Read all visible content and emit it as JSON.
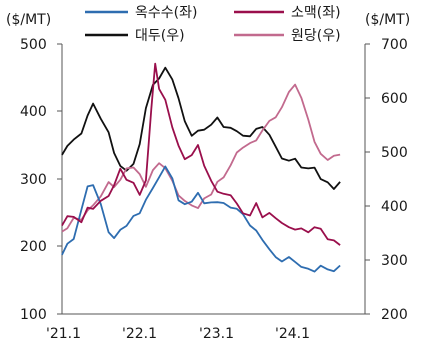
{
  "chart_data": {
    "type": "line",
    "left_axis": {
      "unit": "($/MT)",
      "ylim": [
        100,
        500
      ],
      "ticks": [
        "500",
        "400",
        "300",
        "200",
        "100"
      ]
    },
    "right_axis": {
      "unit": "($/MT)",
      "ylim": [
        200,
        700
      ],
      "ticks": [
        "700",
        "600",
        "500",
        "400",
        "300",
        "200"
      ]
    },
    "x_ticks": [
      "'21.1",
      "'22.1",
      "'23.1",
      "'24.1"
    ],
    "x_tick_positions": [
      2021.0,
      2022.0,
      2023.0,
      2024.0
    ],
    "xlim": [
      2021.0,
      2024.9
    ],
    "grid": false,
    "legend_position": "top",
    "series": [
      {
        "name": "옥수수(좌)",
        "axis": "left",
        "color": "#2e6db0",
        "x": [
          2021.0,
          2021.07,
          2021.15,
          2021.25,
          2021.33,
          2021.4,
          2021.5,
          2021.6,
          2021.67,
          2021.75,
          2021.83,
          2021.92,
          2022.0,
          2022.08,
          2022.17,
          2022.25,
          2022.33,
          2022.42,
          2022.5,
          2022.58,
          2022.67,
          2022.75,
          2022.83,
          2022.92,
          2023.0,
          2023.08,
          2023.17,
          2023.25,
          2023.33,
          2023.42,
          2023.5,
          2023.58,
          2023.67,
          2023.75,
          2023.83,
          2023.92,
          2024.0,
          2024.08,
          2024.17,
          2024.25,
          2024.33,
          2024.42,
          2024.5,
          2024.58
        ],
        "values": [
          190,
          205,
          215,
          255,
          285,
          290,
          260,
          225,
          215,
          225,
          230,
          240,
          250,
          270,
          290,
          305,
          315,
          300,
          265,
          265,
          270,
          280,
          265,
          260,
          265,
          265,
          260,
          260,
          245,
          230,
          220,
          210,
          200,
          185,
          180,
          180,
          175,
          170,
          168,
          168,
          170,
          165,
          160,
          170
        ]
      },
      {
        "name": "소맥(좌)",
        "axis": "left",
        "color": "#9a0f4c",
        "x": [
          2021.0,
          2021.07,
          2021.15,
          2021.25,
          2021.33,
          2021.4,
          2021.5,
          2021.6,
          2021.67,
          2021.75,
          2021.83,
          2021.92,
          2022.0,
          2022.08,
          2022.15,
          2022.2,
          2022.25,
          2022.33,
          2022.42,
          2022.5,
          2022.58,
          2022.67,
          2022.75,
          2022.83,
          2022.92,
          2023.0,
          2023.08,
          2023.17,
          2023.25,
          2023.33,
          2023.42,
          2023.5,
          2023.58,
          2023.67,
          2023.75,
          2023.83,
          2023.92,
          2024.0,
          2024.08,
          2024.17,
          2024.25,
          2024.33,
          2024.42,
          2024.5,
          2024.58
        ],
        "values": [
          235,
          245,
          240,
          235,
          255,
          260,
          270,
          275,
          290,
          310,
          300,
          295,
          280,
          300,
          400,
          470,
          430,
          420,
          380,
          350,
          330,
          330,
          350,
          320,
          300,
          285,
          275,
          275,
          260,
          250,
          250,
          265,
          245,
          245,
          240,
          235,
          230,
          230,
          225,
          220,
          225,
          225,
          215,
          210,
          205
        ]
      },
      {
        "name": "대두(우)",
        "axis": "right",
        "color": "#111111",
        "x": [
          2021.0,
          2021.07,
          2021.15,
          2021.25,
          2021.33,
          2021.4,
          2021.5,
          2021.6,
          2021.67,
          2021.75,
          2021.83,
          2021.92,
          2022.0,
          2022.08,
          2022.17,
          2022.25,
          2022.33,
          2022.42,
          2022.5,
          2022.58,
          2022.67,
          2022.75,
          2022.83,
          2022.92,
          2023.0,
          2023.08,
          2023.17,
          2023.25,
          2023.33,
          2023.42,
          2023.5,
          2023.58,
          2023.67,
          2023.75,
          2023.83,
          2023.92,
          2024.0,
          2024.08,
          2024.17,
          2024.25,
          2024.33,
          2024.42,
          2024.5,
          2024.58
        ],
        "values": [
          490,
          510,
          520,
          540,
          570,
          590,
          560,
          530,
          500,
          475,
          470,
          480,
          510,
          580,
          620,
          640,
          660,
          635,
          600,
          550,
          530,
          540,
          545,
          555,
          560,
          545,
          540,
          540,
          535,
          530,
          545,
          540,
          530,
          510,
          490,
          490,
          485,
          470,
          465,
          470,
          455,
          445,
          435,
          440
        ]
      },
      {
        "name": "원당(우)",
        "axis": "right",
        "color": "#c26a8e",
        "x": [
          2021.0,
          2021.07,
          2021.15,
          2021.25,
          2021.33,
          2021.4,
          2021.5,
          2021.6,
          2021.67,
          2021.75,
          2021.83,
          2021.92,
          2022.0,
          2022.08,
          2022.17,
          2022.25,
          2022.33,
          2022.42,
          2022.5,
          2022.58,
          2022.67,
          2022.75,
          2022.83,
          2022.92,
          2023.0,
          2023.08,
          2023.17,
          2023.25,
          2023.33,
          2023.42,
          2023.5,
          2023.58,
          2023.67,
          2023.75,
          2023.83,
          2023.92,
          2024.0,
          2024.08,
          2024.17,
          2024.25,
          2024.33,
          2024.42,
          2024.5,
          2024.58
        ],
        "values": [
          350,
          365,
          380,
          375,
          390,
          395,
          420,
          445,
          440,
          450,
          465,
          470,
          455,
          440,
          470,
          480,
          470,
          440,
          420,
          410,
          405,
          400,
          410,
          420,
          440,
          455,
          480,
          500,
          510,
          510,
          520,
          540,
          560,
          570,
          580,
          610,
          620,
          600,
          565,
          520,
          500,
          480,
          490,
          495
        ]
      }
    ]
  }
}
